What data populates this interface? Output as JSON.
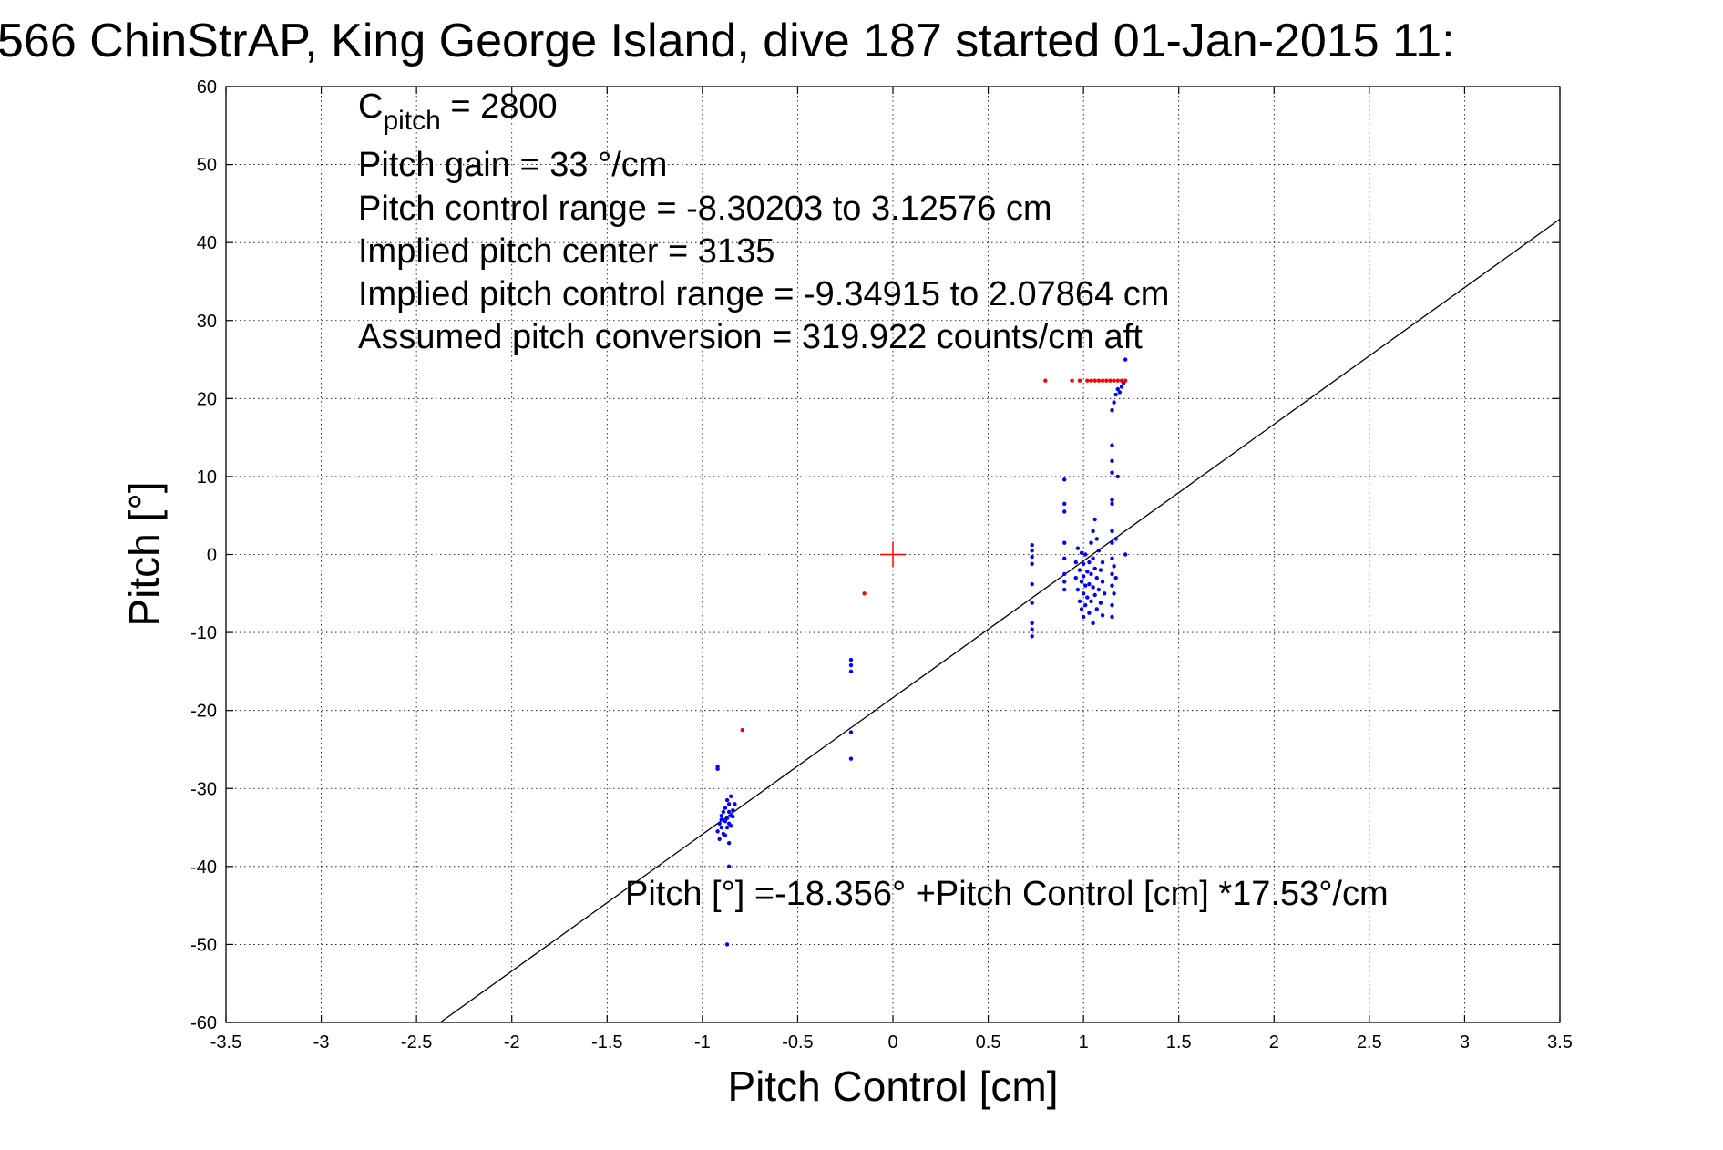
{
  "chart_data": {
    "type": "scatter",
    "title": "566 ChinStrAP, King George Island, dive 187 started 01-Jan-2015 11:",
    "xlabel": "Pitch Control [cm]",
    "ylabel": "Pitch [°]",
    "xlim": [
      -3.5,
      3.5
    ],
    "ylim": [
      -60,
      60
    ],
    "grid": true,
    "xticks": [
      -3.5,
      -3,
      -2.5,
      -2,
      -1.5,
      -1,
      -0.5,
      0,
      0.5,
      1,
      1.5,
      2,
      2.5,
      3,
      3.5
    ],
    "xtick_labels": [
      "-3.5",
      "-3",
      "-2.5",
      "-2",
      "-1.5",
      "-1",
      "-0.5",
      "0",
      "0.5",
      "1",
      "1.5",
      "2",
      "2.5",
      "3",
      "3.5"
    ],
    "yticks": [
      60,
      50,
      40,
      30,
      20,
      10,
      0,
      -10,
      -20,
      -30,
      -40,
      -50,
      -60
    ],
    "ytick_labels": [
      "60",
      "50",
      "40",
      "30",
      "20",
      "10",
      "0",
      "-10",
      "-20",
      "-30",
      "-40",
      "-50",
      "-60"
    ],
    "annotations": {
      "c_pitch": "C",
      "c_pitch_sub": "pitch",
      "c_pitch_value": " = 2800",
      "pitch_gain": "Pitch gain = 33 °/cm",
      "pitch_control_range": "Pitch control range = -8.30203 to 3.12576 cm",
      "implied_center": "Implied pitch center = 3135",
      "implied_range": "Implied pitch control range = -9.34915 to 2.07864 cm",
      "conversion": "Assumed pitch conversion = 319.922 counts/cm aft",
      "fit_equation": "Pitch [°] =-18.356° +Pitch Control [cm] *17.53°/cm"
    },
    "fit_line": {
      "intercept": -18.356,
      "slope": 17.53,
      "color": "#000000"
    },
    "center_marker": {
      "x": 0,
      "y": 0,
      "color": "#ff0000"
    },
    "colors": {
      "blue_series": "#0000ff",
      "red_series": "#ff0000"
    },
    "series": [
      {
        "color": "#0000ff",
        "points": [
          [
            -0.92,
            -27.2
          ],
          [
            -0.92,
            -27.5
          ],
          [
            -0.91,
            -34.5
          ],
          [
            -0.92,
            -35.5
          ],
          [
            -0.91,
            -36.5
          ],
          [
            -0.9,
            -35
          ],
          [
            -0.9,
            -34
          ],
          [
            -0.89,
            -35.8
          ],
          [
            -0.89,
            -33
          ],
          [
            -0.88,
            -34.2
          ],
          [
            -0.88,
            -32.5
          ],
          [
            -0.87,
            -33.8
          ],
          [
            -0.87,
            -35
          ],
          [
            -0.87,
            -31.5
          ],
          [
            -0.86,
            -33
          ],
          [
            -0.86,
            -34.5
          ],
          [
            -0.86,
            -32
          ],
          [
            -0.85,
            -33.5
          ],
          [
            -0.85,
            -31
          ],
          [
            -0.85,
            -34.8
          ],
          [
            -0.84,
            -32.8
          ],
          [
            -0.84,
            -33.6
          ],
          [
            -0.83,
            -32
          ],
          [
            -0.88,
            -36
          ],
          [
            -0.9,
            -33.5
          ],
          [
            -0.86,
            -37
          ],
          [
            -0.86,
            -40
          ],
          [
            -0.87,
            -50
          ],
          [
            -0.22,
            -13.5
          ],
          [
            -0.22,
            -14.2
          ],
          [
            -0.22,
            -15
          ],
          [
            -0.22,
            -22.8
          ],
          [
            -0.22,
            -26.2
          ],
          [
            0.73,
            1.2
          ],
          [
            0.73,
            0.5
          ],
          [
            0.73,
            -0.3
          ],
          [
            0.73,
            -1.2
          ],
          [
            0.73,
            -3.8
          ],
          [
            0.73,
            -6.2
          ],
          [
            0.73,
            -8.8
          ],
          [
            0.73,
            -9.6
          ],
          [
            0.73,
            -10.5
          ],
          [
            0.9,
            9.6
          ],
          [
            0.9,
            6.5
          ],
          [
            0.9,
            5.5
          ],
          [
            0.9,
            1.5
          ],
          [
            0.9,
            -0.5
          ],
          [
            0.9,
            -2.5
          ],
          [
            0.9,
            -3.5
          ],
          [
            0.9,
            -4.5
          ],
          [
            0.96,
            -1
          ],
          [
            0.96,
            -3
          ],
          [
            0.97,
            0.8
          ],
          [
            0.97,
            -4.5
          ],
          [
            0.98,
            -2
          ],
          [
            0.98,
            -6
          ],
          [
            0.99,
            0.2
          ],
          [
            0.99,
            -3.5
          ],
          [
            0.99,
            -7
          ],
          [
            1.0,
            -1.2
          ],
          [
            1.0,
            -2.8
          ],
          [
            1.0,
            -5
          ],
          [
            1.0,
            -8
          ],
          [
            1.01,
            0
          ],
          [
            1.01,
            -4
          ],
          [
            1.01,
            -6.5
          ],
          [
            1.02,
            -2.2
          ],
          [
            1.02,
            -5.5
          ],
          [
            1.03,
            -1
          ],
          [
            1.03,
            -3.8
          ],
          [
            1.03,
            -7.5
          ],
          [
            1.04,
            1.5
          ],
          [
            1.04,
            -2.5
          ],
          [
            1.04,
            -6
          ],
          [
            1.05,
            3
          ],
          [
            1.05,
            -0.5
          ],
          [
            1.05,
            -4.2
          ],
          [
            1.05,
            -8.8
          ],
          [
            1.06,
            4.5
          ],
          [
            1.06,
            -1.8
          ],
          [
            1.06,
            -5.2
          ],
          [
            1.07,
            2
          ],
          [
            1.07,
            -3
          ],
          [
            1.07,
            -7
          ],
          [
            1.08,
            0.5
          ],
          [
            1.08,
            -4.5
          ],
          [
            1.09,
            -2
          ],
          [
            1.09,
            -6.2
          ],
          [
            1.1,
            -1
          ],
          [
            1.1,
            -3.5
          ],
          [
            1.11,
            -5
          ],
          [
            1.1,
            -7.8
          ],
          [
            1.15,
            14
          ],
          [
            1.15,
            12
          ],
          [
            1.15,
            10.5
          ],
          [
            1.15,
            7
          ],
          [
            1.15,
            6.5
          ],
          [
            1.15,
            3
          ],
          [
            1.15,
            1.5
          ],
          [
            1.15,
            -0.5
          ],
          [
            1.15,
            -2.5
          ],
          [
            1.15,
            -4
          ],
          [
            1.15,
            -6.5
          ],
          [
            1.15,
            -8
          ],
          [
            1.16,
            -1.5
          ],
          [
            1.16,
            -5
          ],
          [
            1.17,
            2
          ],
          [
            1.17,
            -3
          ],
          [
            1.15,
            18.5
          ],
          [
            1.16,
            19.5
          ],
          [
            1.17,
            20.5
          ],
          [
            1.18,
            21.2
          ],
          [
            1.19,
            20.8
          ],
          [
            1.2,
            21.5
          ],
          [
            1.21,
            22
          ],
          [
            1.22,
            25
          ],
          [
            1.18,
            10
          ],
          [
            1.22,
            0
          ]
        ]
      },
      {
        "color": "#ff0000",
        "points": [
          [
            0.8,
            22.3
          ],
          [
            0.94,
            22.3
          ],
          [
            0.98,
            22.3
          ],
          [
            1.02,
            22.3
          ],
          [
            1.04,
            22.3
          ],
          [
            1.06,
            22.3
          ],
          [
            1.08,
            22.3
          ],
          [
            1.1,
            22.3
          ],
          [
            1.12,
            22.3
          ],
          [
            1.14,
            22.3
          ],
          [
            1.16,
            22.3
          ],
          [
            1.18,
            22.3
          ],
          [
            1.2,
            22.3
          ],
          [
            1.22,
            22.3
          ],
          [
            -0.15,
            -5
          ],
          [
            -0.79,
            -22.5
          ]
        ]
      }
    ]
  }
}
